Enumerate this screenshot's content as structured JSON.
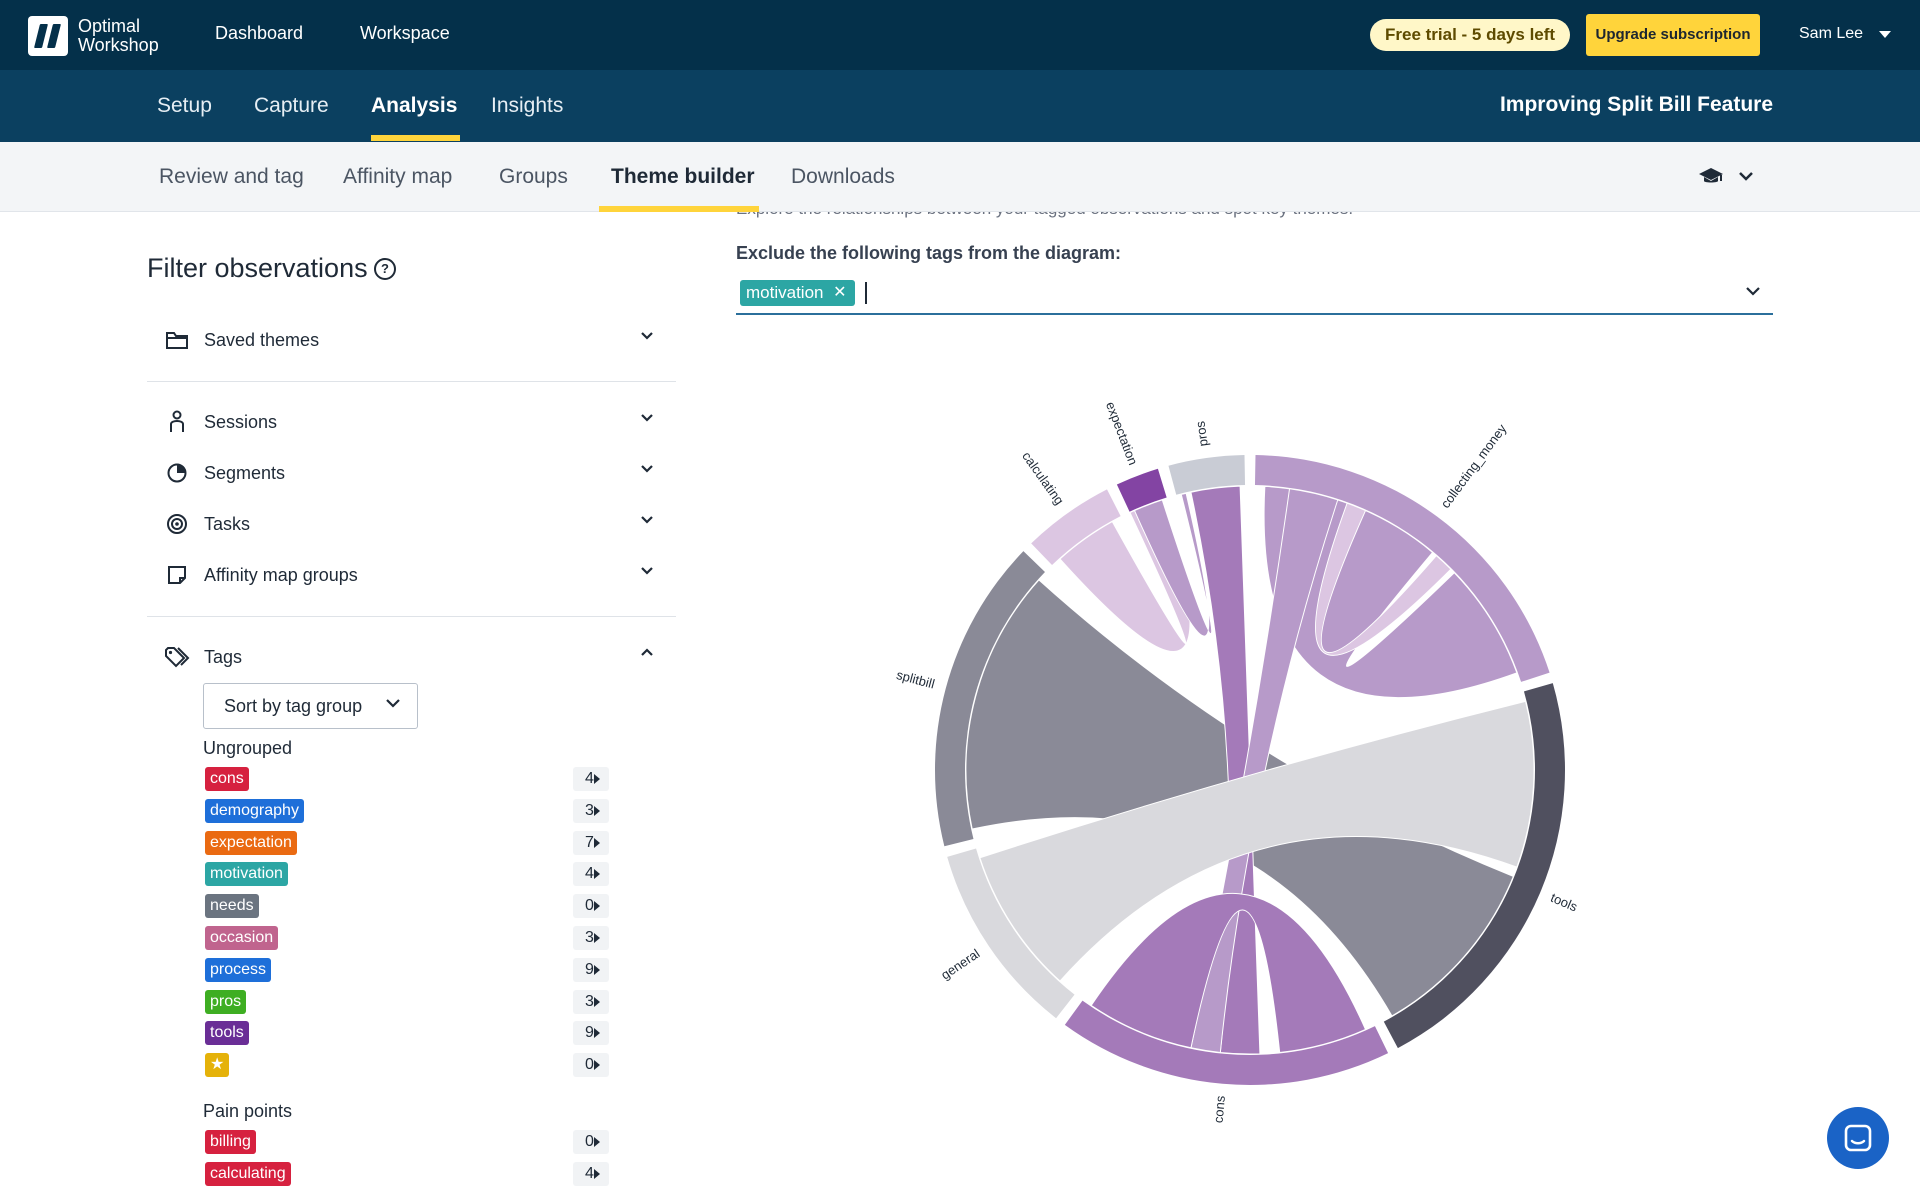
{
  "brand": {
    "line1": "Optimal",
    "line2": "Workshop"
  },
  "topnav": {
    "dashboard": "Dashboard",
    "workspace": "Workspace"
  },
  "trial": "Free trial - 5 days left",
  "upgrade": "Upgrade subscription",
  "user": "Sam Lee",
  "tabs": [
    "Setup",
    "Capture",
    "Analysis",
    "Insights"
  ],
  "active_tab": "Analysis",
  "project_title": "Improving Split Bill Feature",
  "subtabs": [
    "Review and tag",
    "Affinity map",
    "Groups",
    "Theme builder",
    "Downloads"
  ],
  "active_subtab": "Theme builder",
  "filter": {
    "title": "Filter observations",
    "help_glyph": "?",
    "saved_themes": "Saved themes",
    "sessions": "Sessions",
    "segments": "Segments",
    "tasks": "Tasks",
    "affinity_groups": "Affinity map groups",
    "tags": "Tags",
    "sort": "Sort by tag group",
    "groups": [
      {
        "label": "Ungrouped",
        "tags": [
          {
            "name": "cons",
            "count": "4",
            "color": "#d6213f"
          },
          {
            "name": "demography",
            "count": "3",
            "color": "#1e6fd9"
          },
          {
            "name": "expectation",
            "count": "7",
            "color": "#ea6a12"
          },
          {
            "name": "motivation",
            "count": "4",
            "color": "#2ca6a4"
          },
          {
            "name": "needs",
            "count": "0",
            "color": "#6b7480"
          },
          {
            "name": "occasion",
            "count": "3",
            "color": "#c0648e"
          },
          {
            "name": "process",
            "count": "9",
            "color": "#1e6fd9"
          },
          {
            "name": "pros",
            "count": "3",
            "color": "#3eae22"
          },
          {
            "name": "tools",
            "count": "9",
            "color": "#6a2e96"
          },
          {
            "name": "★",
            "count": "0",
            "color": "#e5b20a"
          }
        ]
      },
      {
        "label": "Pain points",
        "tags": [
          {
            "name": "billing",
            "count": "0",
            "color": "#d6213f"
          },
          {
            "name": "calculating",
            "count": "4",
            "color": "#d6213f"
          }
        ]
      }
    ]
  },
  "main": {
    "intro": "Explore the relationships between your tagged observations and spot key themes.",
    "exclude_label": "Exclude the following tags from the diagram:",
    "excluded_tags": [
      "motivation"
    ],
    "remove_glyph": "✕"
  },
  "chart_data": {
    "type": "chord",
    "groups": [
      "pros",
      "collecting_money",
      "tools",
      "cons",
      "general",
      "splitbill",
      "calculating",
      "expectation"
    ],
    "group_colors": [
      "#c9ccd5",
      "#b79ac9",
      "#50505f",
      "#a47ab9",
      "#d9d9dd",
      "#8a8a97",
      "#dcc6e2",
      "#8344a3"
    ],
    "arcs_deg": [
      {
        "start": -15,
        "end": -1
      },
      {
        "start": 1,
        "end": 72
      },
      {
        "start": 74,
        "end": 152
      },
      {
        "start": 154,
        "end": 216
      },
      {
        "start": 218,
        "end": 254
      },
      {
        "start": 256,
        "end": 314
      },
      {
        "start": 316,
        "end": 333
      },
      {
        "start": 335,
        "end": 343
      }
    ],
    "ribbons": [
      {
        "a": [
          258,
          312
        ],
        "b": [
          112,
          150
        ],
        "color": "#8a8a97"
      },
      {
        "a": [
          3,
          40
        ],
        "b": [
          46,
          70
        ],
        "color": "#b79ac9"
      },
      {
        "a": [
          41,
          45
        ],
        "b": [
          20,
          24
        ],
        "color": "#dcc6e2"
      },
      {
        "a": [
          -12,
          -2
        ],
        "b": [
          178,
          186
        ],
        "color": "#a47ab9"
      },
      {
        "a": [
          8,
          18
        ],
        "b": [
          186,
          192
        ],
        "color": "#b79ac9"
      },
      {
        "a": [
          156,
          174
        ],
        "b": [
          192,
          214
        ],
        "color": "#a47ab9"
      },
      {
        "a": [
          222,
          252
        ],
        "b": [
          76,
          110
        ],
        "color": "#d9d9dd"
      },
      {
        "a": [
          318,
          331
        ],
        "b": [
          335,
          342
        ],
        "color": "#dcc6e2"
      },
      {
        "a": [
          336,
          342
        ],
        "b": [
          -14,
          -13
        ],
        "color": "#b79ac9"
      }
    ]
  }
}
